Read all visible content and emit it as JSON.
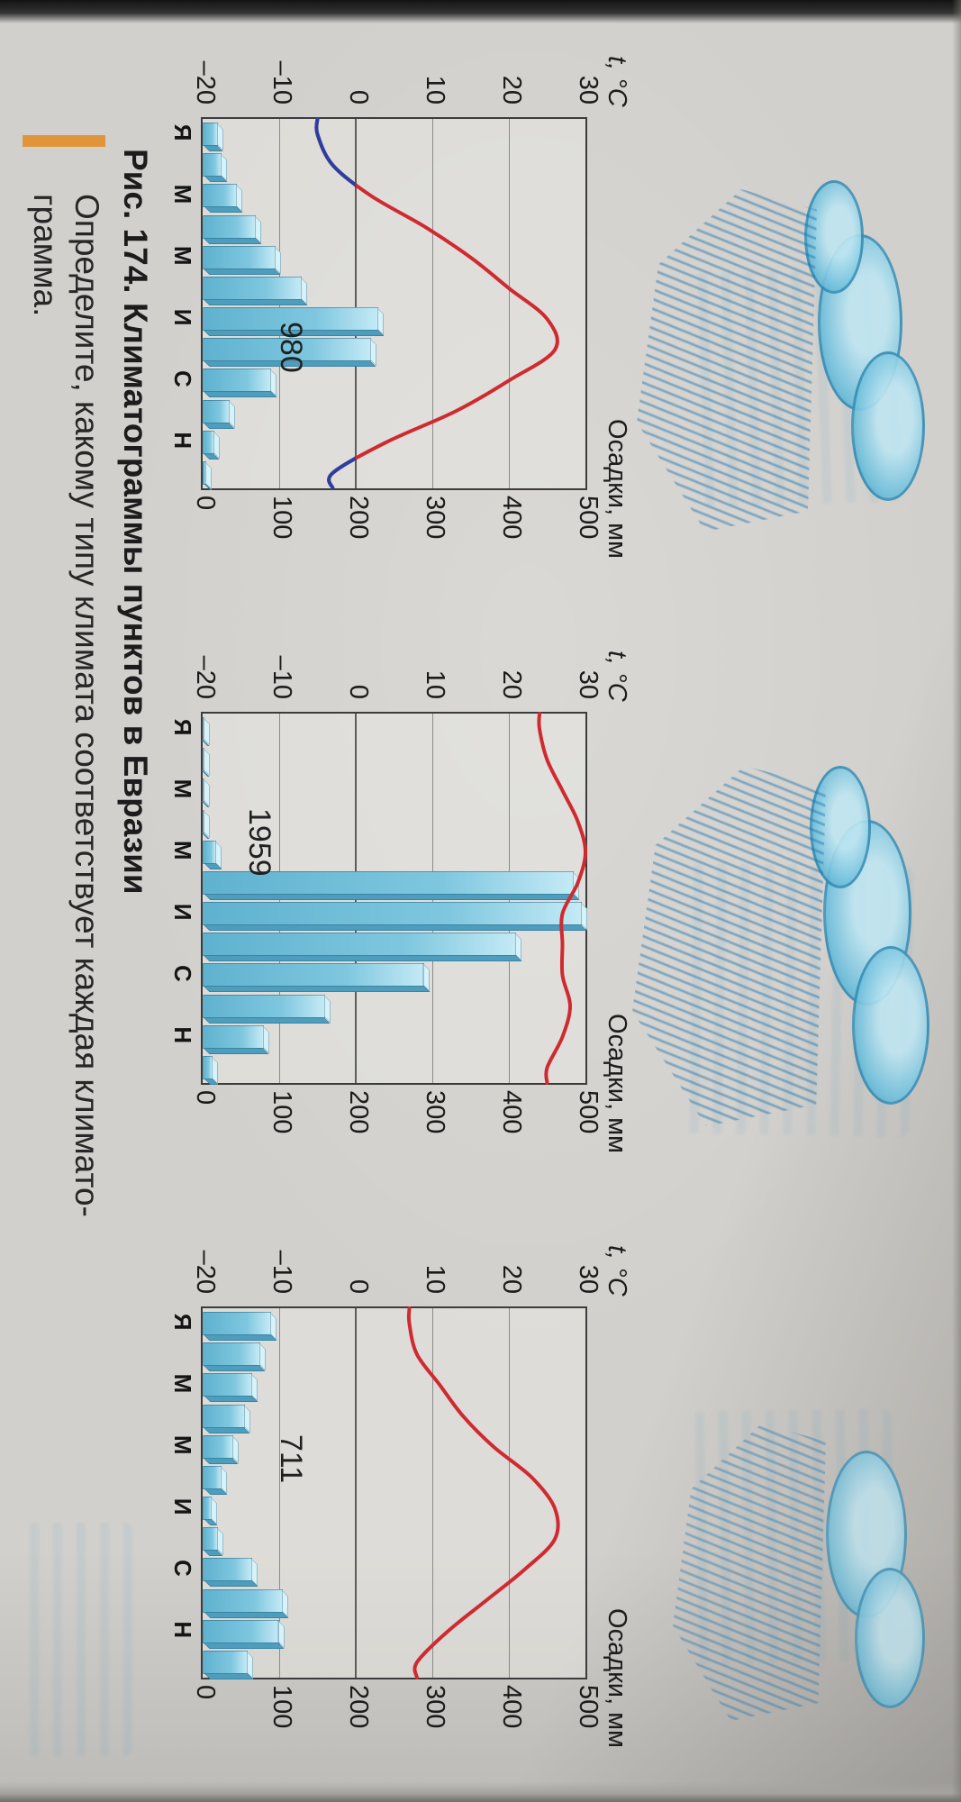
{
  "page": {
    "caption": "Рис. 174. Климатограммы пунктов в Евразии",
    "task_line1": "Определите, какому типу климата соответствует каждая климато-",
    "task_line2": "грамма.",
    "accent_color": "#e0953a",
    "paper_color": "#d2d0cc"
  },
  "chart_data": [
    {
      "type": "bar",
      "subtype": "climatogram (precipitation bars + temperature line)",
      "total_mm_label": "980",
      "temp_axis_label": "t, °C",
      "precip_axis_label": "Осадки, мм",
      "temp_ticks": [
        "30",
        "20",
        "10",
        "0",
        "–10",
        "–20"
      ],
      "precip_ticks": [
        "500",
        "400",
        "300",
        "200",
        "100",
        "0"
      ],
      "month_labels": [
        "Я",
        "М",
        "М",
        "И",
        "С",
        "Н"
      ],
      "month_positions": [
        1,
        3,
        5,
        7,
        9,
        11
      ],
      "temperature_c": [
        -5,
        -3,
        2,
        9,
        15,
        20,
        25,
        26,
        20,
        13,
        4,
        -3
      ],
      "precipitation_mm": [
        20,
        25,
        45,
        70,
        95,
        130,
        230,
        220,
        90,
        35,
        15,
        5
      ],
      "temp_range": [
        -20,
        30
      ],
      "precip_range": [
        0,
        500
      ],
      "temp_color": "#cf2a30",
      "temp_below_zero_color": "#2c3fa0",
      "bar_color": "#8ed2e8"
    },
    {
      "type": "bar",
      "subtype": "climatogram (precipitation bars + temperature line)",
      "total_mm_label": "1959",
      "temp_axis_label": "t, °C",
      "precip_axis_label": "Осадки, мм",
      "temp_ticks": [
        "30",
        "20",
        "10",
        "0",
        "–10",
        "–20"
      ],
      "precip_ticks": [
        "500",
        "400",
        "300",
        "200",
        "100",
        "0"
      ],
      "month_labels": [
        "Я",
        "М",
        "М",
        "И",
        "С",
        "Н"
      ],
      "month_positions": [
        1,
        3,
        5,
        7,
        9,
        11
      ],
      "temperature_c": [
        24,
        25,
        27,
        29,
        30,
        29,
        27,
        27,
        27,
        28,
        27,
        25
      ],
      "precipitation_mm": [
        2,
        2,
        2,
        2,
        18,
        485,
        495,
        410,
        290,
        160,
        80,
        13
      ],
      "temp_range": [
        -20,
        30
      ],
      "precip_range": [
        0,
        500
      ],
      "temp_color": "#cf2a30",
      "temp_below_zero_color": "#2c3fa0",
      "bar_color": "#8ed2e8"
    },
    {
      "type": "bar",
      "subtype": "climatogram (precipitation bars + temperature line)",
      "total_mm_label": "711",
      "temp_axis_label": "t, °C",
      "precip_axis_label": "Осадки, мм",
      "temp_ticks": [
        "30",
        "20",
        "10",
        "0",
        "–10",
        "–20"
      ],
      "precip_ticks": [
        "500",
        "400",
        "300",
        "200",
        "100",
        "0"
      ],
      "month_labels": [
        "Я",
        "М",
        "М",
        "И",
        "С",
        "Н"
      ],
      "month_positions": [
        1,
        3,
        5,
        7,
        9,
        11
      ],
      "temperature_c": [
        7,
        8,
        11,
        14,
        18,
        23,
        26,
        26,
        22,
        17,
        12,
        8
      ],
      "precipitation_mm": [
        90,
        75,
        65,
        55,
        40,
        25,
        12,
        20,
        65,
        105,
        100,
        59
      ],
      "temp_range": [
        -20,
        30
      ],
      "precip_range": [
        0,
        500
      ],
      "temp_color": "#cf2a30",
      "temp_below_zero_color": "#2c3fa0",
      "bar_color": "#8ed2e8"
    }
  ]
}
